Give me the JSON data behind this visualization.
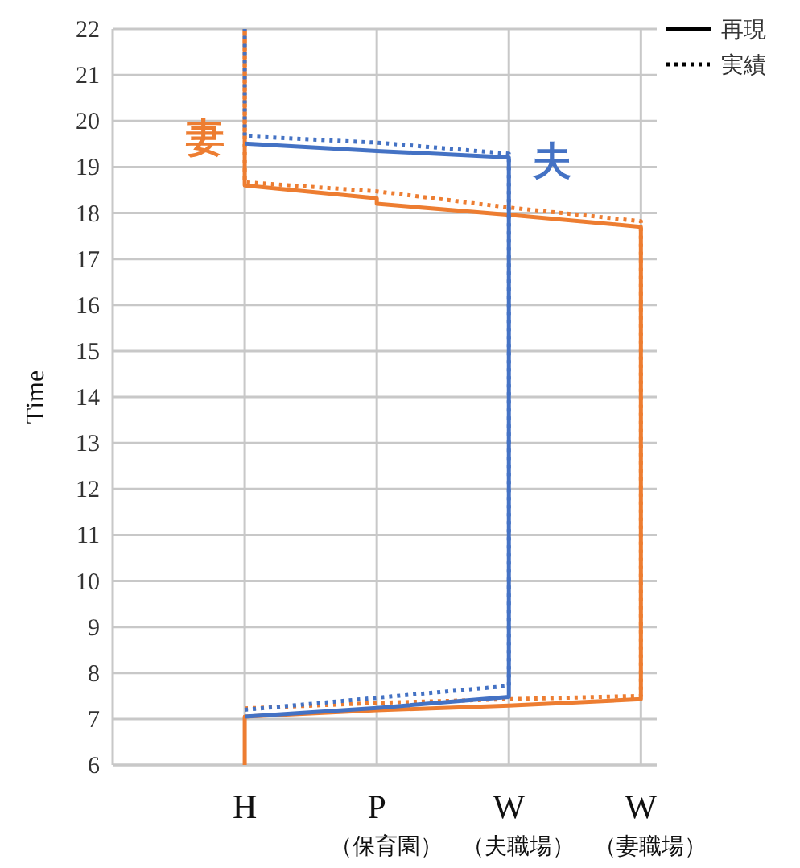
{
  "chart_data": {
    "type": "line",
    "ylabel": "Time",
    "categories": [
      "H",
      "P\n（保育園）",
      "W\n（夫職場）",
      "W\n（妻職場）"
    ],
    "ylim": [
      6,
      22
    ],
    "yticks": [
      6,
      7,
      8,
      9,
      10,
      11,
      12,
      13,
      14,
      15,
      16,
      17,
      18,
      19,
      20,
      21,
      22
    ],
    "grid": true,
    "legend": "top right",
    "series": [
      {
        "name": "再現",
        "color": "#ed7d31",
        "line_style": "solid",
        "x": [
          "H",
          "H",
          "P\n（保育園）",
          "W\n（夫職場）",
          "W\n（妻職場）",
          "W\n（妻職場）",
          "W\n（夫職場）",
          "P\n（保育園）",
          "P\n（保育園）",
          "H",
          "H"
        ],
        "values": [
          6,
          7.05,
          7.19,
          7.29,
          7.43,
          17.7,
          17.96,
          18.2,
          18.32,
          18.6,
          22
        ]
      },
      {
        "name": "実績",
        "color": "#ed7d31",
        "line_style": "dotted",
        "x": [
          "H",
          "P\n（保育園）",
          "W\n（夫職場）",
          "W\n（妻職場）",
          "W\n（妻職場）",
          "W\n（夫職場）",
          "P\n（保育園）",
          "H",
          "H"
        ],
        "values": [
          7.23,
          7.35,
          7.43,
          7.5,
          17.82,
          18.12,
          18.47,
          18.67,
          22
        ]
      },
      {
        "color": "#4472c4",
        "line_style": "solid",
        "x": [
          "H",
          "P\n（保育園）",
          "W\n（夫職場）",
          "W\n（夫職場）",
          "P\n（保育園）",
          "H"
        ],
        "values": [
          7.05,
          7.24,
          7.48,
          19.21,
          19.35,
          19.51
        ]
      },
      {
        "color": "#4472c4",
        "line_style": "dotted",
        "x": [
          "H",
          "P\n（保育園）",
          "W\n（夫職場）",
          "W\n（夫職場）",
          "P\n（保育園）",
          "H",
          "H"
        ],
        "values": [
          7.2,
          7.46,
          7.72,
          19.29,
          19.53,
          19.67,
          22
        ]
      }
    ],
    "annotations": [
      "妻",
      "夫"
    ]
  }
}
